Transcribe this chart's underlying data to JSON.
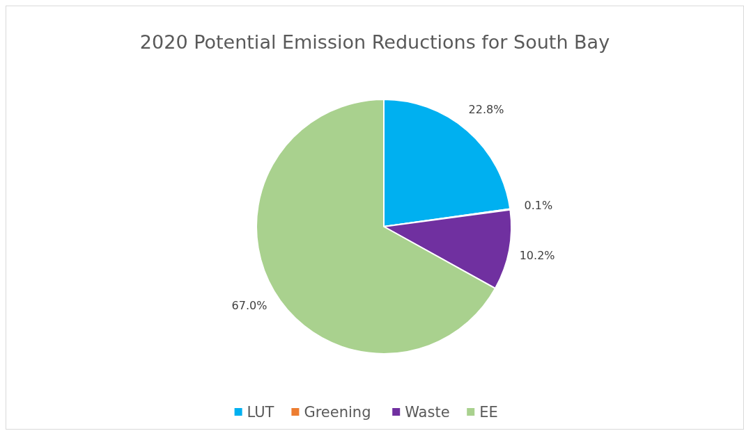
{
  "chart_data": {
    "type": "pie",
    "title": "2020 Potential Emission Reductions for South Bay",
    "categories": [
      "LUT",
      "Greening",
      "Waste",
      "EE"
    ],
    "values": [
      22.8,
      0.1,
      10.2,
      67.0
    ],
    "colors": [
      "#00b0f0",
      "#ed7d31",
      "#7030a0",
      "#a9d18e"
    ],
    "value_labels": [
      "22.8%",
      "0.1%",
      "10.2%",
      "67.0%"
    ],
    "legend": "bottom"
  }
}
